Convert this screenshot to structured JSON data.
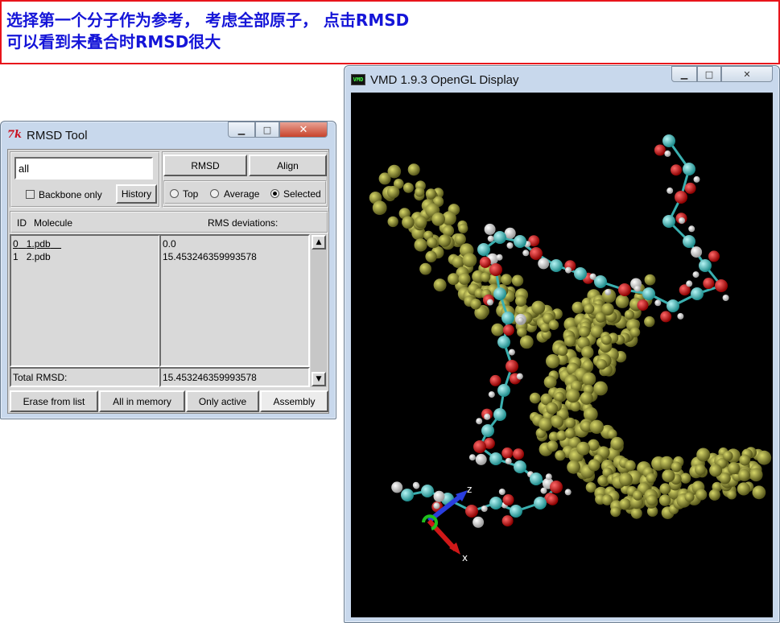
{
  "annotation": {
    "line1": "选择第一个分子作为参考， 考虑全部原子， 点击RMSD",
    "line2": "可以看到未叠合时RMSD很大",
    "text_color": "#1515d8",
    "border_color": "#e8141b"
  },
  "rmsd_tool": {
    "title": "RMSD Tool",
    "icon": "tk-feather-icon",
    "selection_value": "all",
    "backbone_label": "Backbone only",
    "backbone_checked": false,
    "history_label": "History",
    "rmsd_label": "RMSD",
    "align_label": "Align",
    "ref_options": [
      {
        "label": "Top",
        "selected": false
      },
      {
        "label": "Average",
        "selected": false
      },
      {
        "label": "Selected",
        "selected": true
      }
    ],
    "col_id": "ID",
    "col_molecule": "Molecule",
    "col_rms": "RMS deviations:",
    "rows": [
      {
        "id": "0",
        "molecule": "1.pdb",
        "rms": "0.0"
      },
      {
        "id": "1",
        "molecule": "2.pdb",
        "rms": "15.453246359993578"
      }
    ],
    "total_label": "Total RMSD:",
    "total_value": "15.453246359993578",
    "bottom_buttons": [
      "Erase from list",
      "All in memory",
      "Only active",
      "Assembly"
    ]
  },
  "vmd_window": {
    "title": "VMD 1.9.3 OpenGL Display",
    "icon": "vmd-icon",
    "axes": {
      "x": "x",
      "z": "z"
    }
  },
  "window_controls": {
    "minimize": "minimize-icon",
    "maximize": "maximize-icon",
    "close": "close-icon"
  }
}
